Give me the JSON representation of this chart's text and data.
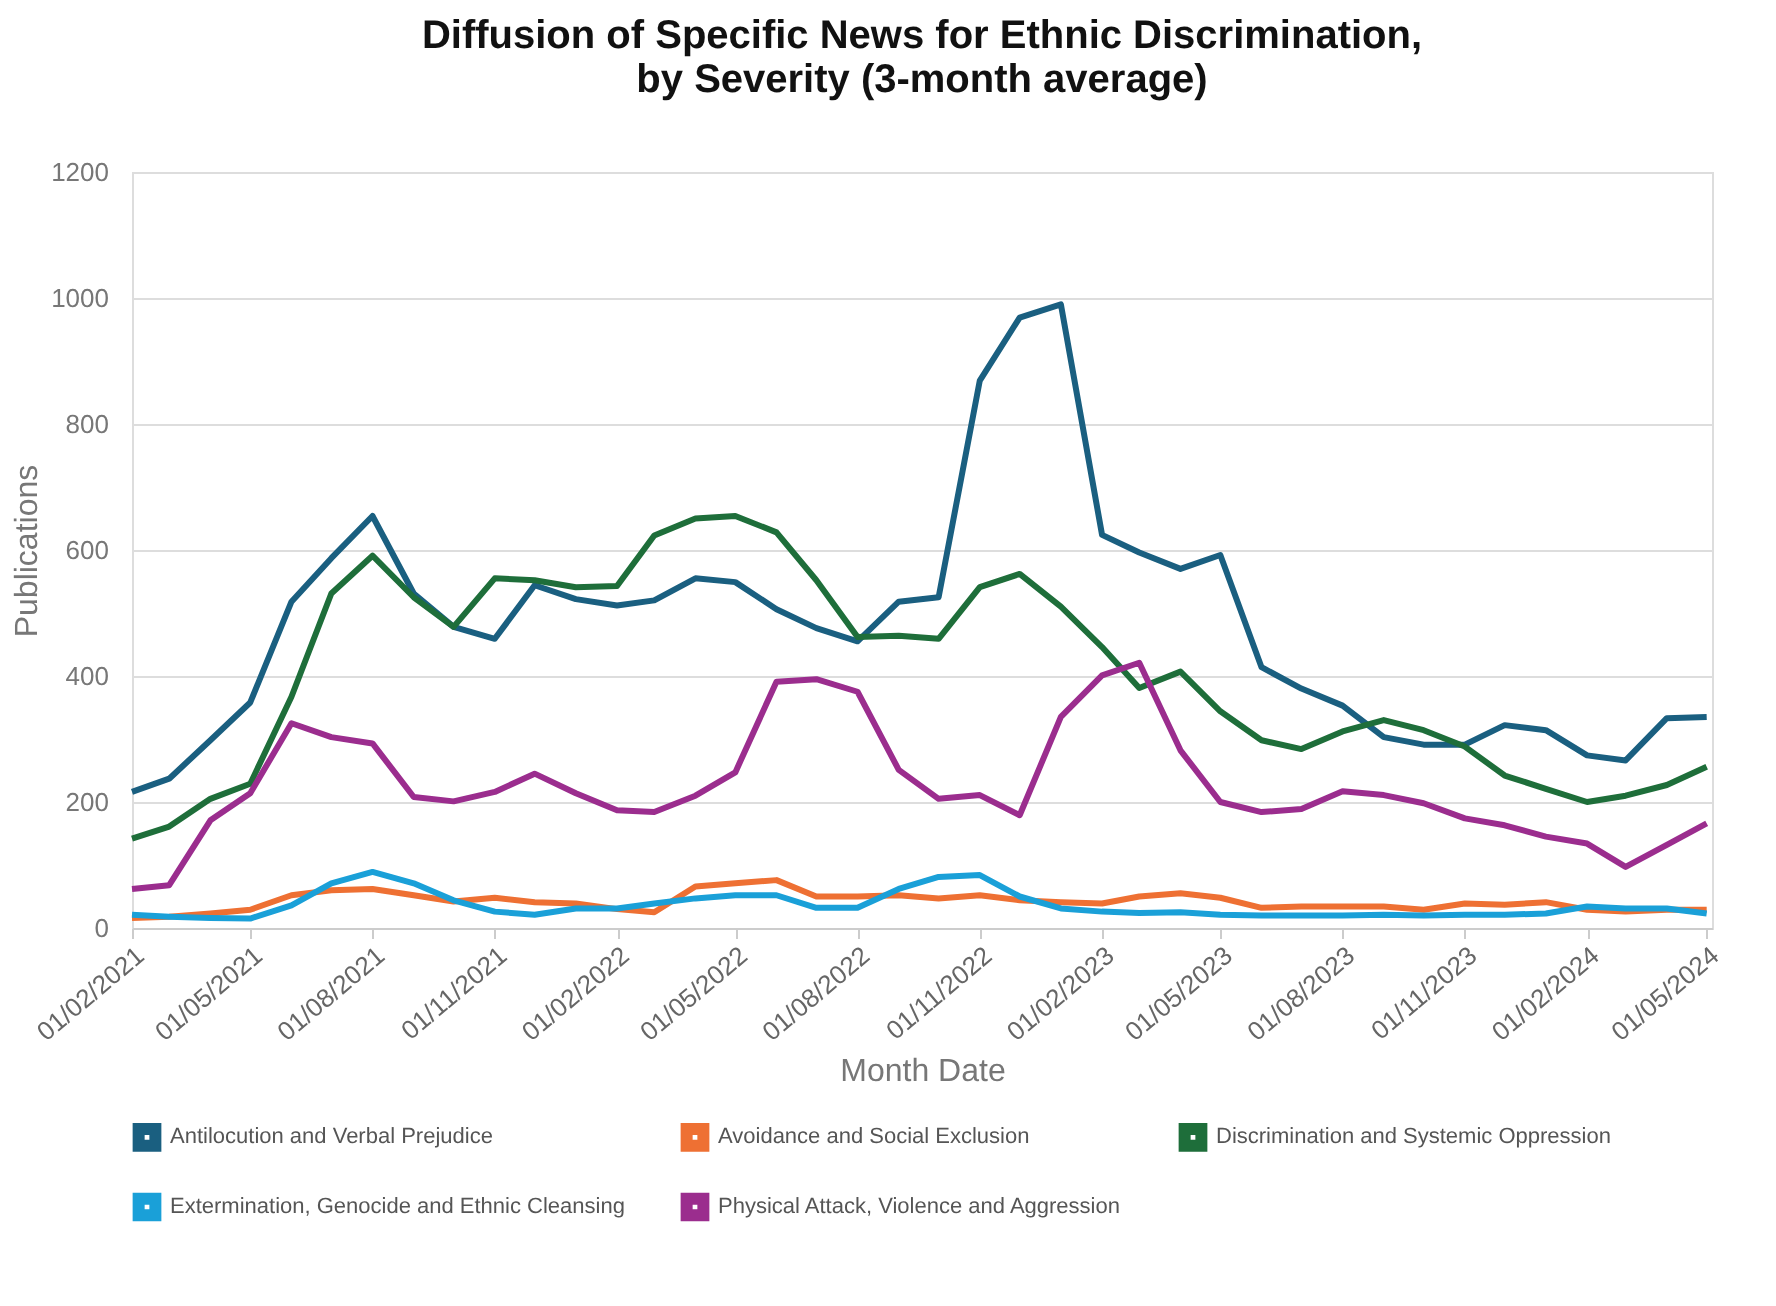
{
  "chart_data": {
    "type": "line",
    "title": "Diffusion of Specific News for Ethnic Discrimination,\nby Severity (3-month average)",
    "xlabel": "Month Date",
    "ylabel": "Publications",
    "x": [
      "2021-02",
      "2021-03",
      "2021-04",
      "2021-05",
      "2021-06",
      "2021-07",
      "2021-08",
      "2021-09",
      "2021-10",
      "2021-11",
      "2021-12",
      "2022-01",
      "2022-02",
      "2022-03",
      "2022-04",
      "2022-05",
      "2022-06",
      "2022-07",
      "2022-08",
      "2022-09",
      "2022-10",
      "2022-11",
      "2022-12",
      "2023-01",
      "2023-02",
      "2023-03",
      "2023-04",
      "2023-05",
      "2023-06",
      "2023-07",
      "2023-08",
      "2023-09",
      "2023-10",
      "2023-11",
      "2023-12",
      "2024-01",
      "2024-02",
      "2024-03",
      "2024-04",
      "2024-05"
    ],
    "series": [
      {
        "name": "Antilocution and Verbal Prejudice",
        "color": "#1a5f80",
        "values": [
          216,
          237,
          298,
          358,
          518,
          587,
          654,
          531,
          478,
          459,
          544,
          522,
          512,
          520,
          555,
          549,
          506,
          476,
          455,
          518,
          525,
          869,
          969,
          990,
          624,
          596,
          570,
          592,
          414,
          380,
          353,
          303,
          291,
          291,
          322,
          314,
          274,
          266,
          333,
          335
        ]
      },
      {
        "name": "Avoidance and Social Exclusion",
        "color": "#ee7033",
        "values": [
          16,
          18,
          23,
          29,
          52,
          60,
          62,
          52,
          42,
          48,
          41,
          39,
          30,
          25,
          66,
          71,
          76,
          50,
          50,
          52,
          47,
          52,
          44,
          41,
          39,
          50,
          55,
          48,
          32,
          34,
          34,
          34,
          29,
          39,
          37,
          41,
          29,
          26,
          29,
          29
        ]
      },
      {
        "name": "Discrimination and Systemic Oppression",
        "color": "#1e6e3a",
        "values": [
          142,
          161,
          205,
          229,
          367,
          531,
          591,
          525,
          478,
          555,
          552,
          541,
          543,
          623,
          650,
          654,
          628,
          552,
          462,
          464,
          459,
          541,
          562,
          510,
          446,
          381,
          407,
          344,
          298,
          284,
          312,
          330,
          314,
          288,
          242,
          221,
          200,
          210,
          227,
          256
        ]
      },
      {
        "name": "Extermination, Genocide and Ethnic Cleansing",
        "color": "#1aa0d8",
        "values": [
          21,
          18,
          16,
          15,
          36,
          71,
          89,
          71,
          44,
          26,
          21,
          31,
          31,
          39,
          47,
          52,
          52,
          32,
          32,
          62,
          81,
          84,
          50,
          31,
          26,
          24,
          25,
          21,
          20,
          20,
          20,
          21,
          20,
          21,
          21,
          23,
          34,
          31,
          31,
          23
        ]
      },
      {
        "name": "Physical Attack, Violence and Aggression",
        "color": "#9b2d8e",
        "values": [
          62,
          68,
          171,
          214,
          325,
          303,
          293,
          208,
          201,
          216,
          245,
          214,
          187,
          184,
          210,
          247,
          391,
          395,
          375,
          251,
          205,
          211,
          179,
          335,
          401,
          421,
          282,
          200,
          184,
          189,
          217,
          211,
          198,
          174,
          163,
          145,
          134,
          97,
          132,
          166
        ]
      }
    ],
    "xlim": [
      "2021-02-01",
      "2024-05-05"
    ],
    "xticks": [
      {
        "value": "2021-02-01",
        "label": "01/02/2021"
      },
      {
        "value": "2021-05-01",
        "label": "01/05/2021"
      },
      {
        "value": "2021-08-01",
        "label": "01/08/2021"
      },
      {
        "value": "2021-11-01",
        "label": "01/11/2021"
      },
      {
        "value": "2022-02-01",
        "label": "01/02/2022"
      },
      {
        "value": "2022-05-01",
        "label": "01/05/2022"
      },
      {
        "value": "2022-08-01",
        "label": "01/08/2022"
      },
      {
        "value": "2022-11-01",
        "label": "01/11/2022"
      },
      {
        "value": "2023-02-01",
        "label": "01/02/2023"
      },
      {
        "value": "2023-05-01",
        "label": "01/05/2023"
      },
      {
        "value": "2023-08-01",
        "label": "01/08/2023"
      },
      {
        "value": "2023-11-01",
        "label": "01/11/2023"
      },
      {
        "value": "2024-02-01",
        "label": "01/02/2024"
      },
      {
        "value": "2024-05-01",
        "label": "01/05/2024"
      }
    ],
    "ylim": [
      0,
      1200
    ],
    "yticks": [
      0,
      200,
      400,
      600,
      800,
      1000,
      1200
    ],
    "grid": "y",
    "legend": "bottom",
    "marker": "none",
    "line_style": "solid"
  }
}
